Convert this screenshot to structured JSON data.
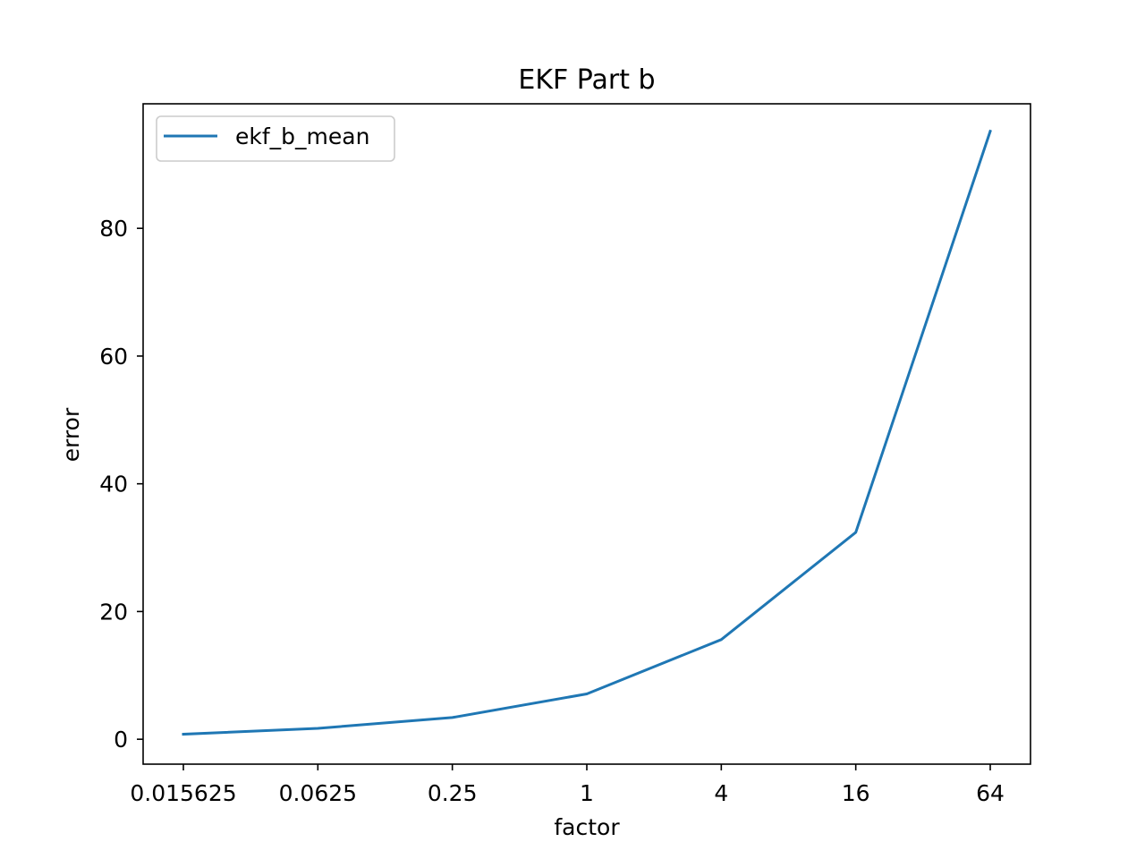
{
  "chart_data": {
    "type": "line",
    "title": "EKF Part b",
    "xlabel": "factor",
    "ylabel": "error",
    "x_tick_labels": [
      "0.015625",
      "0.0625",
      "0.25",
      "1",
      "4",
      "16",
      "64"
    ],
    "x": [
      0.015625,
      0.0625,
      0.25,
      1,
      4,
      16,
      64
    ],
    "x_scale": "log2",
    "y_ticks": [
      0,
      20,
      40,
      60,
      80
    ],
    "ylim": [
      -3.9,
      99.5
    ],
    "grid": false,
    "legend_position": "top-left",
    "series": [
      {
        "name": "ekf_b_mean",
        "color": "#1f77b4",
        "values": [
          0.8,
          1.7,
          3.4,
          7.1,
          15.6,
          32.4,
          95.2
        ]
      }
    ]
  }
}
